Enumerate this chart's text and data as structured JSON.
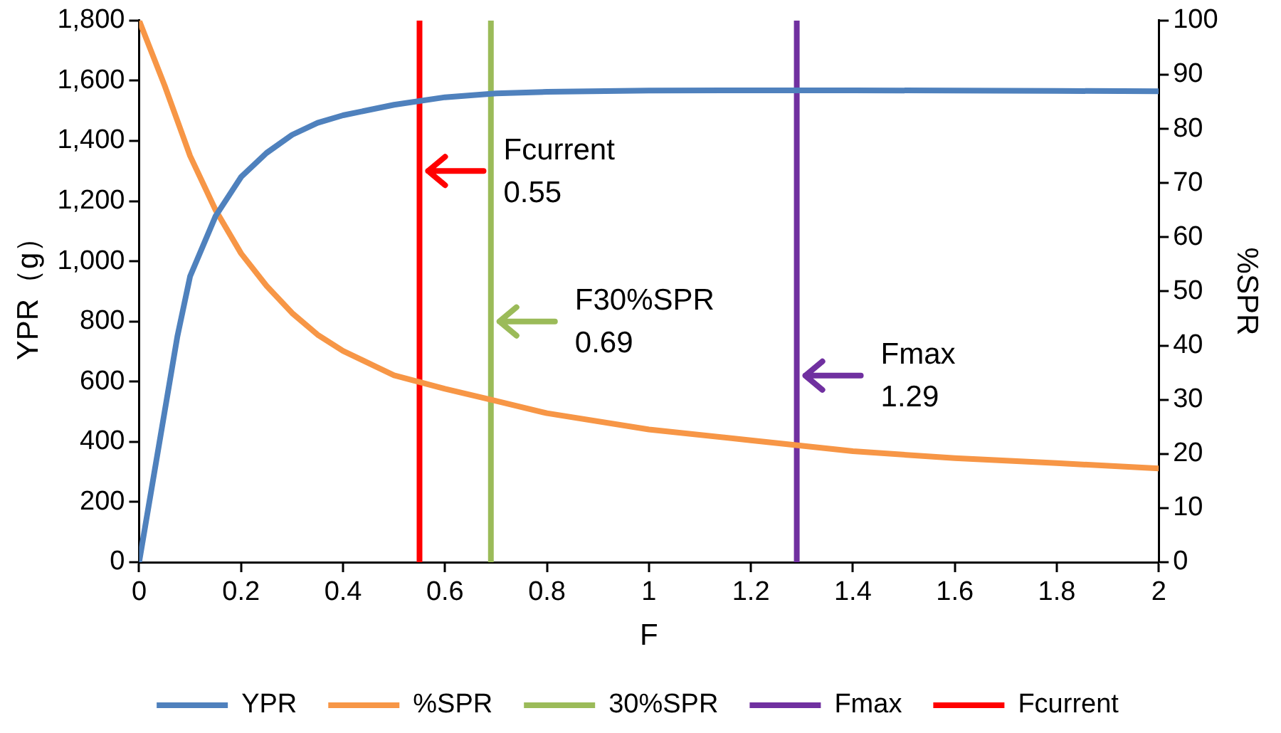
{
  "chart_data": {
    "type": "line",
    "xlabel": "F",
    "ylabel": "YPR（g）",
    "y2label": "%SPR",
    "xlim": [
      0,
      2
    ],
    "xticks": [
      0,
      0.2,
      0.4,
      0.6,
      0.8,
      1,
      1.2,
      1.4,
      1.6,
      1.8,
      2
    ],
    "ylim": [
      0,
      1800
    ],
    "yticks": [
      0,
      200,
      400,
      600,
      800,
      {
        "value": 1000,
        "label": "1,000"
      },
      {
        "value": 1200,
        "label": "1,200"
      },
      {
        "value": 1400,
        "label": "1,400"
      },
      {
        "value": 1600,
        "label": "1,600"
      },
      {
        "value": 1800,
        "label": "1,800"
      }
    ],
    "y2lim": [
      0,
      100
    ],
    "y2ticks": [
      0,
      10,
      20,
      30,
      40,
      50,
      60,
      70,
      80,
      90,
      100
    ],
    "grid": false,
    "legend": "bottom",
    "marker": "none",
    "line_style": "solid",
    "series": [
      {
        "name": "YPR",
        "color": "#4f81bd",
        "x": [
          0,
          0.025,
          0.05,
          0.075,
          0.1,
          0.15,
          0.2,
          0.25,
          0.3,
          0.35,
          0.4,
          0.5,
          0.6,
          0.7,
          0.8,
          1,
          1.2,
          1.4,
          1.6,
          1.8,
          2
        ],
        "values": [
          0,
          250,
          500,
          750,
          950,
          1150,
          1280,
          1360,
          1420,
          1460,
          1485,
          1520,
          1545,
          1558,
          1563,
          1567,
          1568,
          1568,
          1567,
          1566,
          1565
        ]
      },
      {
        "name": "%SPR",
        "color": "#f79646",
        "axis": "y2",
        "x": [
          0,
          0.05,
          0.1,
          0.15,
          0.2,
          0.25,
          0.3,
          0.35,
          0.4,
          0.5,
          0.6,
          0.69,
          0.8,
          1,
          1.2,
          1.4,
          1.6,
          1.8,
          2
        ],
        "values": [
          100,
          88,
          75,
          65,
          57,
          51,
          46,
          42,
          39,
          34.5,
          32,
          30,
          27.5,
          24.5,
          22.5,
          20.5,
          19.2,
          18.3,
          17.3
        ]
      },
      {
        "name": "30%SPR",
        "color": "#9bbb59",
        "x": [
          0.69,
          0.69
        ],
        "values": [
          0,
          1800
        ]
      },
      {
        "name": "Fmax",
        "color": "#7030a0",
        "x": [
          1.29,
          1.29
        ],
        "values": [
          0,
          1800
        ]
      },
      {
        "name": "Fcurrent",
        "color": "#ff0000",
        "x": [
          0.55,
          0.55
        ],
        "values": [
          0,
          1800
        ]
      }
    ],
    "annotations": [
      {
        "text": "Fcurrent\n0.55",
        "x": 0.55,
        "y": 1300
      },
      {
        "text": "F30%SPR\n0.69",
        "x": 0.69,
        "y": 800
      },
      {
        "text": "Fmax\n1.29",
        "x": 1.29,
        "y": 620
      }
    ]
  }
}
